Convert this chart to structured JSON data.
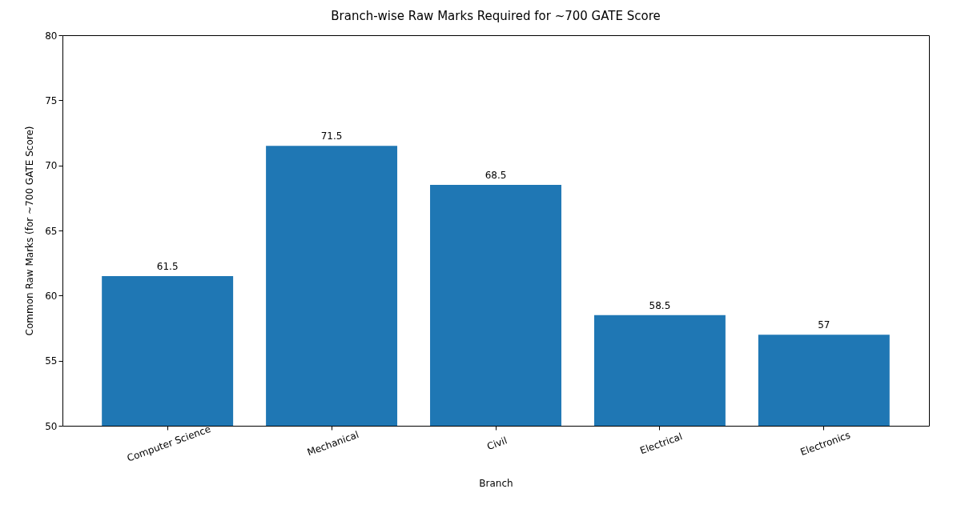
{
  "chart_data": {
    "type": "bar",
    "title": "Branch-wise Raw Marks Required for ~700 GATE Score",
    "xlabel": "Branch",
    "ylabel": "Common Raw Marks (for ~700 GATE Score)",
    "categories": [
      "Computer Science",
      "Mechanical",
      "Civil",
      "Electrical",
      "Electronics"
    ],
    "values": [
      61.5,
      71.5,
      68.5,
      58.5,
      57
    ],
    "color": "#1f77b4",
    "ylim": [
      50,
      80
    ],
    "yticks": [
      50,
      55,
      60,
      65,
      70,
      75,
      80
    ],
    "grid": false,
    "data_labels": true
  }
}
